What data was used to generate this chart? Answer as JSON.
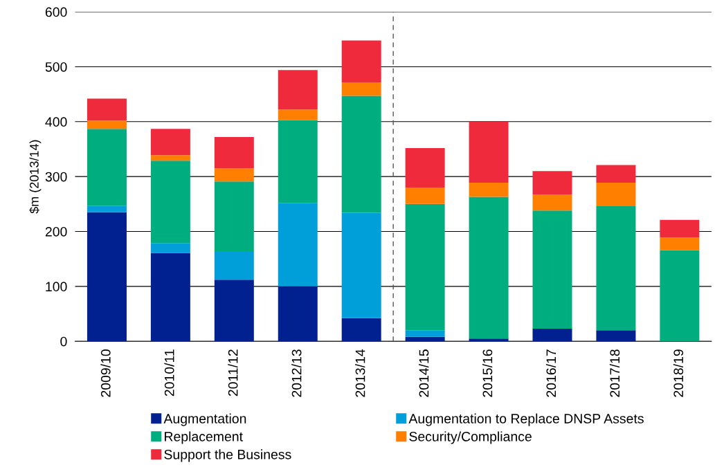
{
  "chart_data": {
    "type": "bar",
    "stacked": true,
    "ylabel": "$m (2013/14)",
    "categories": [
      "2009/10",
      "2010/11",
      "2011/12",
      "2012/13",
      "2013/14",
      "2014/15",
      "2015/16",
      "2016/17",
      "2017/18",
      "2018/19"
    ],
    "series": [
      {
        "name": "Augmentation",
        "color": "#00218f",
        "values": [
          235,
          161,
          112,
          100,
          42,
          8,
          5,
          23,
          20,
          0
        ]
      },
      {
        "name": "Augmentation to Replace DNSP Assets",
        "color": "#009fda",
        "values": [
          12,
          18,
          52,
          152,
          192,
          12,
          0,
          0,
          0,
          0
        ]
      },
      {
        "name": "Replacement",
        "color": "#00ad7f",
        "values": [
          140,
          150,
          127,
          151,
          213,
          230,
          258,
          215,
          226,
          166
        ]
      },
      {
        "name": "Security/Compliance",
        "color": "#ff7f00",
        "values": [
          15,
          10,
          24,
          19,
          24,
          30,
          26,
          29,
          43,
          23
        ]
      },
      {
        "name": "Support the Business",
        "color": "#ef2a3c",
        "values": [
          40,
          48,
          57,
          72,
          77,
          72,
          111,
          43,
          32,
          32
        ]
      }
    ],
    "ylim": [
      0,
      600
    ],
    "yticks": [
      0,
      100,
      200,
      300,
      400,
      500,
      600
    ],
    "grid": "y",
    "legend": "bottom",
    "ref_lines": [
      {
        "axis": "x",
        "value": "2014/15",
        "color": "#555555",
        "line_style": "dashed"
      }
    ]
  }
}
